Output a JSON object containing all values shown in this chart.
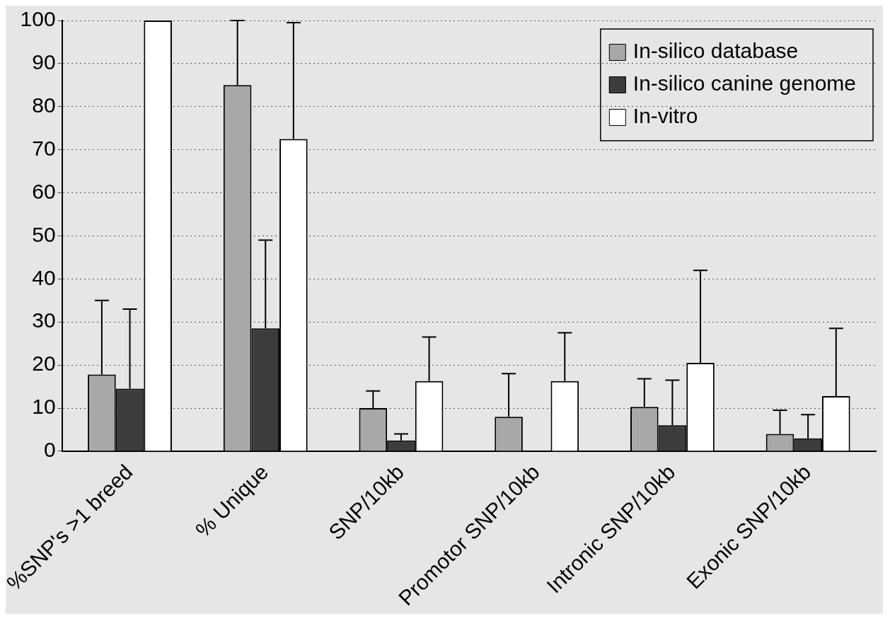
{
  "chart_data": {
    "type": "bar",
    "categories": [
      "%SNP's >1 breed",
      "% Unique",
      "SNP/10kb",
      "Promotor SNP/10kb",
      "Intronic SNP/10kb",
      "Exonic SNP/10kb"
    ],
    "series": [
      {
        "name": "In-silico database",
        "color": "#a8a8a8",
        "values": [
          17.8,
          85,
          10,
          8,
          10.3,
          4
        ],
        "errors": [
          [
            17.8,
            35
          ],
          [
            85,
            100
          ],
          [
            10,
            14
          ],
          [
            8,
            18
          ],
          [
            10.3,
            16.8
          ],
          [
            4,
            9.5
          ]
        ]
      },
      {
        "name": "In-silico canine genome",
        "color": "#3c3c3c",
        "values": [
          14.5,
          28.5,
          2.5,
          null,
          6,
          3
        ],
        "errors": [
          [
            14.5,
            33
          ],
          [
            28.5,
            49
          ],
          [
            2.5,
            4
          ],
          null,
          [
            6,
            16.5
          ],
          [
            3,
            8.5
          ]
        ]
      },
      {
        "name": "In-vitro",
        "color": "#ffffff",
        "values": [
          100,
          72.5,
          16.3,
          16.3,
          20.5,
          12.8
        ],
        "errors": [
          null,
          [
            72.5,
            99.5
          ],
          [
            16.3,
            26.5
          ],
          [
            16.3,
            27.5
          ],
          [
            20.5,
            42
          ],
          [
            12.8,
            28.5
          ]
        ]
      }
    ],
    "ylim": [
      0,
      100
    ],
    "yticks": [
      0,
      10,
      20,
      30,
      40,
      50,
      60,
      70,
      80,
      90,
      100
    ],
    "grid": "y",
    "legend": "top right"
  }
}
